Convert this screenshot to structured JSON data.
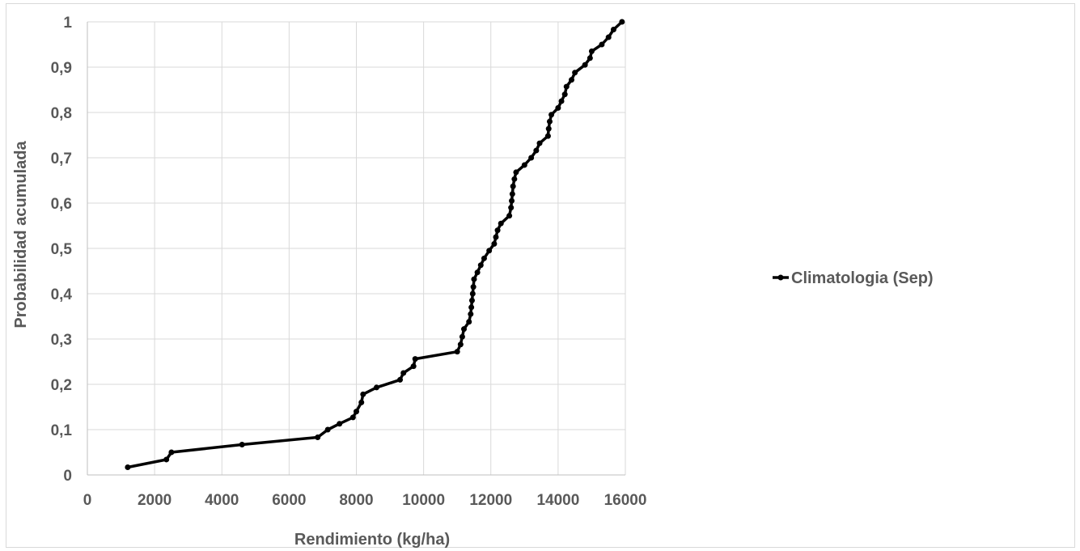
{
  "chart_data": {
    "type": "line",
    "title": "",
    "xlabel": "Rendimiento (kg/ha)",
    "ylabel": "Probabilidad acumulada",
    "xlim": [
      0,
      16000
    ],
    "ylim": [
      0,
      1
    ],
    "x_ticks": [
      "0",
      "2000",
      "4000",
      "6000",
      "8000",
      "10000",
      "12000",
      "14000",
      "16000"
    ],
    "y_ticks": [
      "0",
      "0,1",
      "0,2",
      "0,3",
      "0,4",
      "0,5",
      "0,6",
      "0,7",
      "0,8",
      "0,9",
      "1"
    ],
    "grid": true,
    "legend_position": "right",
    "series": [
      {
        "name": "Climatologia (Sep)",
        "color": "#000000",
        "marker": "circle",
        "points": [
          [
            1200,
            0.017
          ],
          [
            2350,
            0.034
          ],
          [
            2500,
            0.05
          ],
          [
            4600,
            0.067
          ],
          [
            6850,
            0.083
          ],
          [
            7150,
            0.1
          ],
          [
            7500,
            0.113
          ],
          [
            7900,
            0.127
          ],
          [
            8000,
            0.14
          ],
          [
            8150,
            0.16
          ],
          [
            8200,
            0.178
          ],
          [
            8600,
            0.193
          ],
          [
            9300,
            0.21
          ],
          [
            9400,
            0.225
          ],
          [
            9700,
            0.24
          ],
          [
            9750,
            0.256
          ],
          [
            11000,
            0.272
          ],
          [
            11100,
            0.288
          ],
          [
            11150,
            0.305
          ],
          [
            11200,
            0.322
          ],
          [
            11350,
            0.338
          ],
          [
            11400,
            0.355
          ],
          [
            11420,
            0.37
          ],
          [
            11440,
            0.385
          ],
          [
            11460,
            0.4
          ],
          [
            11480,
            0.415
          ],
          [
            11500,
            0.432
          ],
          [
            11600,
            0.447
          ],
          [
            11700,
            0.463
          ],
          [
            11800,
            0.478
          ],
          [
            11950,
            0.495
          ],
          [
            12100,
            0.51
          ],
          [
            12150,
            0.525
          ],
          [
            12200,
            0.54
          ],
          [
            12300,
            0.555
          ],
          [
            12550,
            0.572
          ],
          [
            12600,
            0.59
          ],
          [
            12620,
            0.605
          ],
          [
            12640,
            0.62
          ],
          [
            12660,
            0.637
          ],
          [
            12700,
            0.653
          ],
          [
            12750,
            0.668
          ],
          [
            13000,
            0.684
          ],
          [
            13200,
            0.7
          ],
          [
            13350,
            0.716
          ],
          [
            13450,
            0.732
          ],
          [
            13700,
            0.748
          ],
          [
            13720,
            0.764
          ],
          [
            13750,
            0.78
          ],
          [
            13800,
            0.795
          ],
          [
            14000,
            0.81
          ],
          [
            14100,
            0.825
          ],
          [
            14200,
            0.84
          ],
          [
            14250,
            0.857
          ],
          [
            14400,
            0.872
          ],
          [
            14500,
            0.888
          ],
          [
            14800,
            0.905
          ],
          [
            14950,
            0.92
          ],
          [
            15000,
            0.935
          ],
          [
            15300,
            0.95
          ],
          [
            15500,
            0.966
          ],
          [
            15650,
            0.983
          ],
          [
            15900,
            1.0
          ]
        ]
      }
    ]
  }
}
